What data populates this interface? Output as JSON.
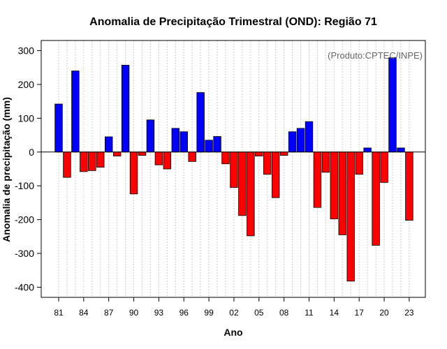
{
  "chart_data": {
    "type": "bar",
    "title": "Anomalia de Precipitação Trimestral (OND): Região 71",
    "xlabel": "Ano",
    "ylabel": "Anomalia de precipitação (mm)",
    "credit": "(Produto:CPTEC/INPE)",
    "ylim": [
      -430,
      330
    ],
    "yticks": [
      300,
      200,
      100,
      0,
      -100,
      -200,
      -300,
      -400
    ],
    "xtick_labels": [
      "81",
      "84",
      "87",
      "90",
      "93",
      "96",
      "99",
      "02",
      "05",
      "08",
      "11",
      "14",
      "17",
      "20",
      "23"
    ],
    "grid": true,
    "positive_color": "#0000ff",
    "negative_color": "#ff0000",
    "categories": [
      "1981",
      "1982",
      "1983",
      "1984",
      "1985",
      "1986",
      "1987",
      "1988",
      "1989",
      "1990",
      "1991",
      "1992",
      "1993",
      "1994",
      "1995",
      "1996",
      "1997",
      "1998",
      "1999",
      "2000",
      "2001",
      "2002",
      "2003",
      "2004",
      "2005",
      "2006",
      "2007",
      "2008",
      "2009",
      "2010",
      "2011",
      "2012",
      "2013",
      "2014",
      "2015",
      "2016",
      "2017",
      "2018",
      "2019",
      "2020",
      "2021",
      "2022",
      "2023"
    ],
    "values": [
      142,
      -75,
      240,
      -58,
      -55,
      -45,
      45,
      -12,
      257,
      -124,
      -10,
      95,
      -38,
      -50,
      70,
      60,
      -28,
      176,
      35,
      46,
      -35,
      -105,
      -188,
      -248,
      -12,
      -66,
      -135,
      -10,
      60,
      70,
      90,
      -164,
      -60,
      -198,
      -245,
      -382,
      -66,
      12,
      -276,
      -90,
      279,
      12,
      -202
    ]
  }
}
